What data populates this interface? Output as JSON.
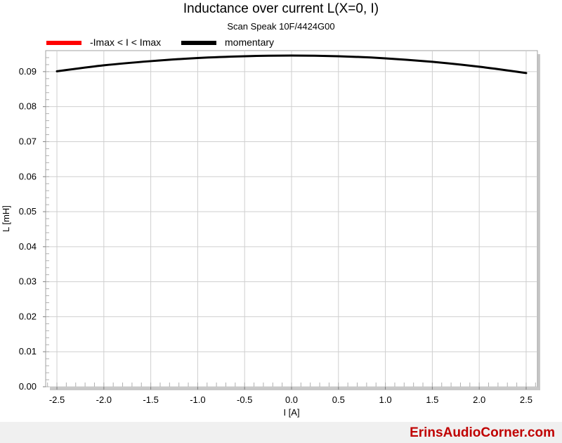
{
  "chart_data": {
    "type": "line",
    "title": "Inductance over current L(X=0, I)",
    "subtitle": "Scan Speak 10F/4424G00",
    "xlabel": "I [A]",
    "ylabel": "L [mH]",
    "xlim": [
      -2.62,
      2.62
    ],
    "ylim": [
      0,
      0.096
    ],
    "xticks": [
      -2.5,
      -2.0,
      -1.5,
      -1.0,
      -0.5,
      0.0,
      0.5,
      1.0,
      1.5,
      2.0,
      2.5
    ],
    "xtick_labels": [
      "-2.5",
      "-2.0",
      "-1.5",
      "-1.0",
      "-0.5",
      "0.0",
      "0.5",
      "1.0",
      "1.5",
      "2.0",
      "2.5"
    ],
    "yticks": [
      0,
      0.01,
      0.02,
      0.03,
      0.04,
      0.05,
      0.06,
      0.07,
      0.08,
      0.09
    ],
    "ytick_labels": [
      "0.00",
      "0.01",
      "0.02",
      "0.03",
      "0.04",
      "0.05",
      "0.06",
      "0.07",
      "0.08",
      "0.09"
    ],
    "grid": true,
    "legend_position": "top-left",
    "series": [
      {
        "name": "-Imax < I < Imax",
        "color": "#ff0000",
        "x": [],
        "y": []
      },
      {
        "name": "momentary",
        "color": "#000000",
        "x": [
          -2.5,
          -2.0,
          -1.5,
          -1.0,
          -0.5,
          0.0,
          0.5,
          1.0,
          1.5,
          2.0,
          2.5
        ],
        "y": [
          0.0901,
          0.0918,
          0.093,
          0.0939,
          0.0944,
          0.0946,
          0.0944,
          0.0938,
          0.0928,
          0.0914,
          0.0896
        ]
      }
    ]
  },
  "watermark": "ErinsAudioCorner.com"
}
